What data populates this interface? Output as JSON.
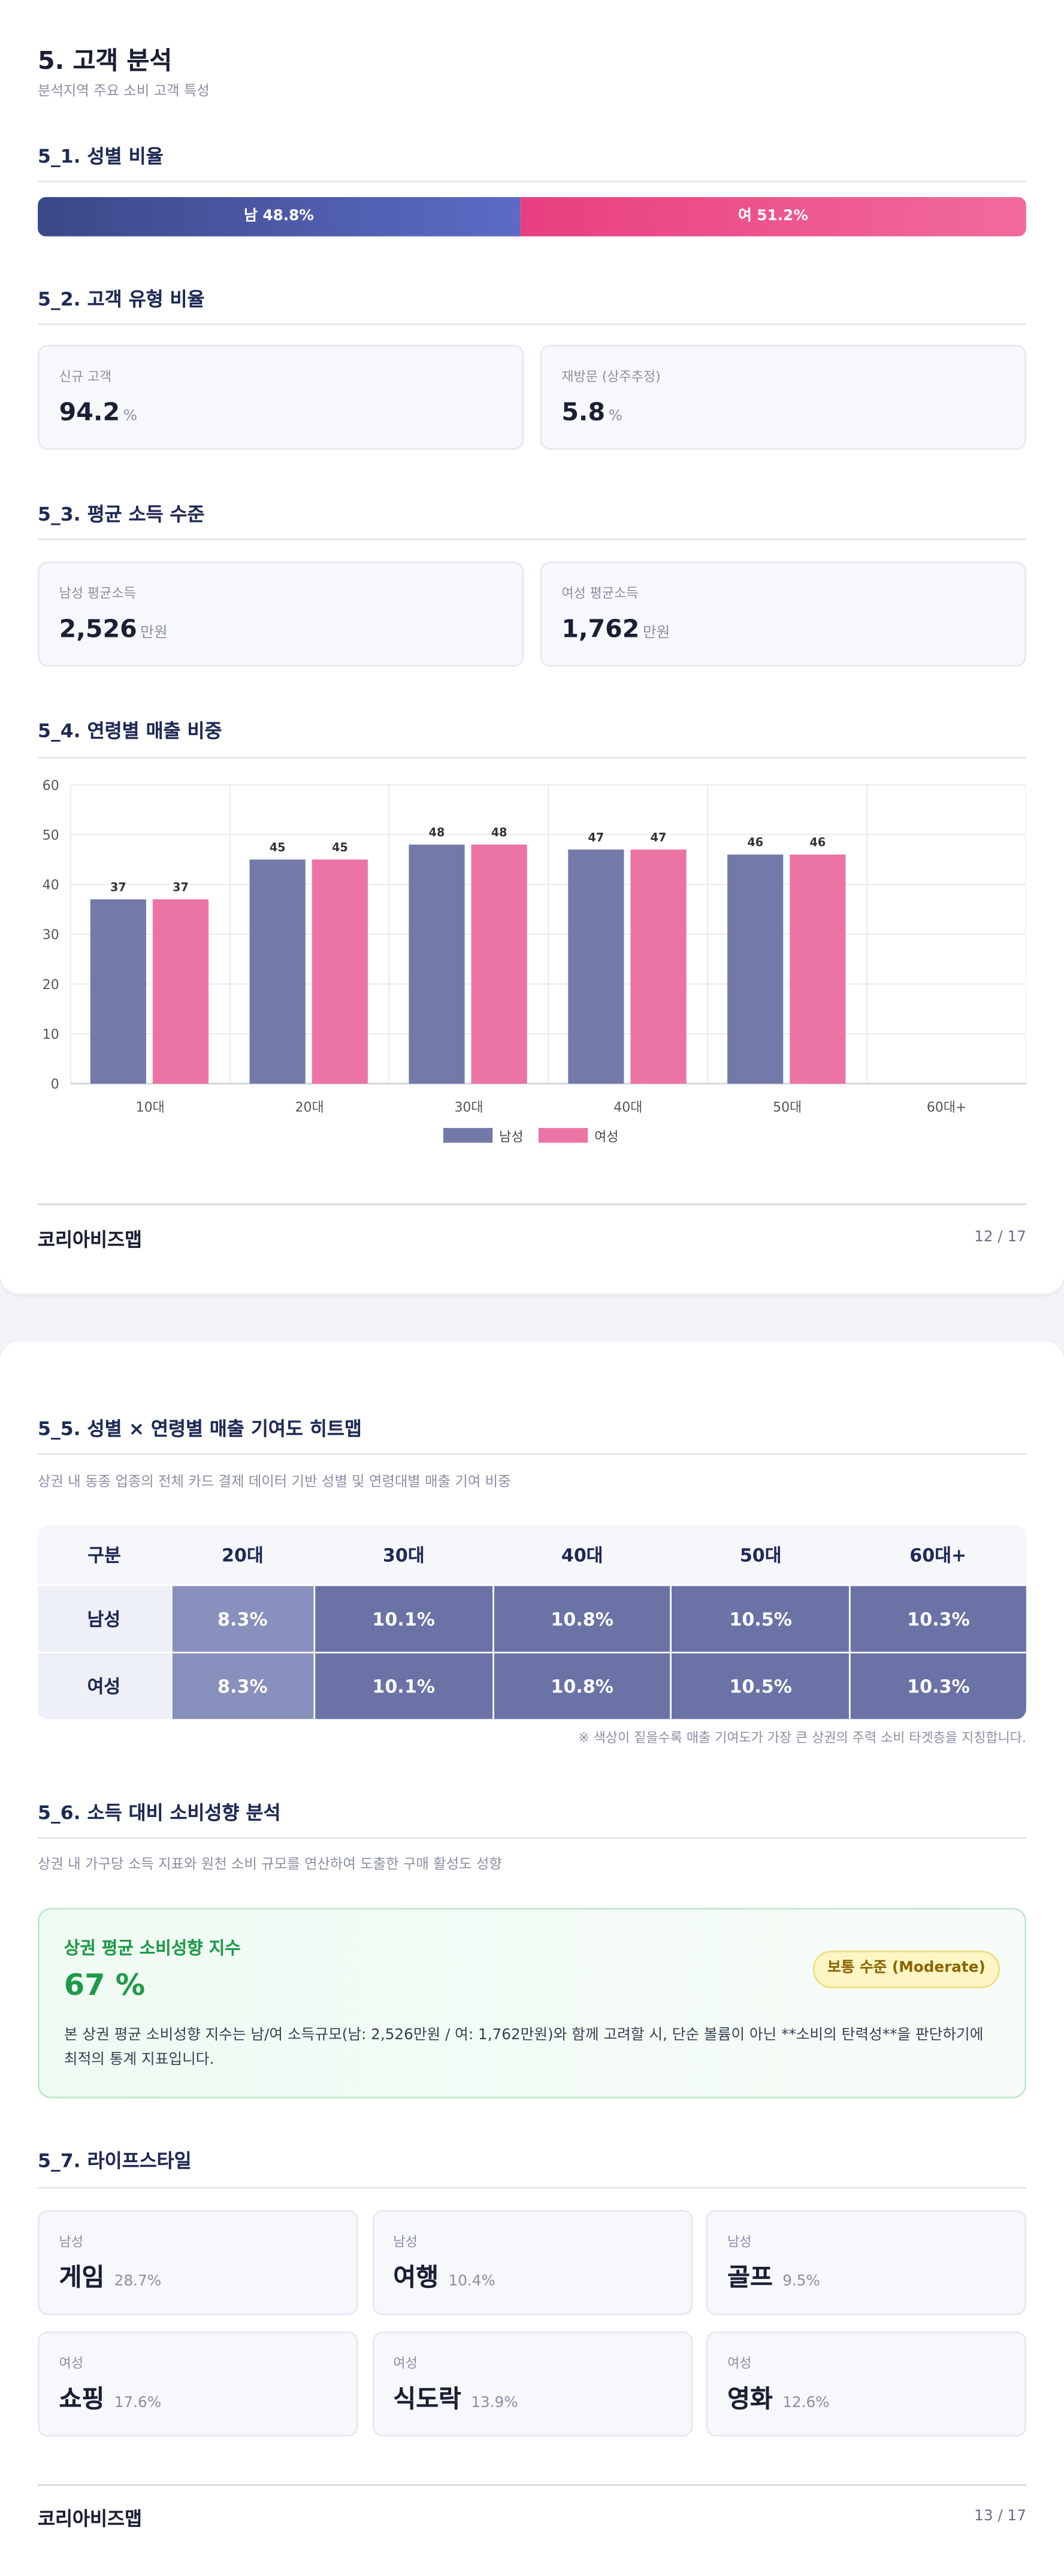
{
  "page1": {
    "title": "5. 고객 분석",
    "subtitle": "분석지역 주요 소비 고객 특성",
    "gender": {
      "heading": "5_1. 성별 비율",
      "segments": [
        {
          "label": "남 48.8%",
          "value": 48.8
        },
        {
          "label": "여 51.2%",
          "value": 51.2
        }
      ]
    },
    "customer_type": {
      "heading": "5_2. 고객 유형 비율",
      "cards": [
        {
          "label": "신규 고객",
          "value": "94.2",
          "unit": "%"
        },
        {
          "label": "재방문 (상주추정)",
          "value": "5.8",
          "unit": "%"
        }
      ]
    },
    "income": {
      "heading": "5_3. 평균 소득 수준",
      "cards": [
        {
          "label": "남성 평균소득",
          "value": "2,526",
          "unit": "만원"
        },
        {
          "label": "여성 평균소득",
          "value": "1,762",
          "unit": "만원"
        }
      ]
    },
    "age_heading": "5_4. 연령별 매출 비중",
    "footer": {
      "brand": "코리아비즈맵",
      "page": "12 / 17"
    }
  },
  "chart_data": {
    "type": "bar",
    "categories": [
      "10대",
      "20대",
      "30대",
      "40대",
      "50대",
      "60대+"
    ],
    "series": [
      {
        "name": "남성",
        "color": "#737aa9",
        "values": [
          37,
          45,
          48,
          47,
          46,
          null
        ]
      },
      {
        "name": "여성",
        "color": "#ec74a4",
        "values": [
          37,
          45,
          48,
          47,
          46,
          null
        ]
      }
    ],
    "ylim": [
      0,
      60
    ],
    "yticks": [
      0,
      10,
      20,
      30,
      40,
      50,
      60
    ],
    "grid": true,
    "legend": "bottom"
  },
  "page2": {
    "heatmap": {
      "heading": "5_5. 성별 × 연령별 매출 기여도 히트맵",
      "subtitle": "상권 내 동종 업종의 전체 카드 결제 데이터 기반 성별 및 연령대별 매출 기여 비중",
      "header": [
        "구분",
        "20대",
        "30대",
        "40대",
        "50대",
        "60대+"
      ],
      "rows": [
        [
          "남성",
          "8.3%",
          "10.1%",
          "10.8%",
          "10.5%",
          "10.3%"
        ],
        [
          "여성",
          "8.3%",
          "10.1%",
          "10.8%",
          "10.5%",
          "10.3%"
        ]
      ],
      "note": "※ 색상이 짙을수록 매출 기여도가 가장 큰 상권의 주력 소비 타겟층을 지칭합니다."
    },
    "propensity": {
      "heading": "5_6. 소득 대비 소비성향 분석",
      "subtitle": "상권 내 가구당 소득 지표와 원천 소비 규모를 연산하여 도출한 구매 활성도 성향",
      "box_title": "상권 평균 소비성향 지수",
      "value": "67 %",
      "badge": "보통 수준 (Moderate)",
      "text": "본 상권 평균 소비성향 지수는 남/여 소득규모(남: 2,526만원 / 여: 1,762만원)와 함께 고려할 시, 단순 볼륨이 아닌 **소비의 탄력성**을 판단하기에 최적의 통계 지표입니다."
    },
    "lifestyle": {
      "heading": "5_7. 라이프스타일",
      "items": [
        {
          "gender": "남성",
          "name": "게임",
          "pct": "28.7%"
        },
        {
          "gender": "남성",
          "name": "여행",
          "pct": "10.4%"
        },
        {
          "gender": "남성",
          "name": "골프",
          "pct": "9.5%"
        },
        {
          "gender": "여성",
          "name": "쇼핑",
          "pct": "17.6%"
        },
        {
          "gender": "여성",
          "name": "식도락",
          "pct": "13.9%"
        },
        {
          "gender": "여성",
          "name": "영화",
          "pct": "12.6%"
        }
      ]
    },
    "footer": {
      "brand": "코리아비즈맵",
      "page": "13 / 17"
    }
  }
}
